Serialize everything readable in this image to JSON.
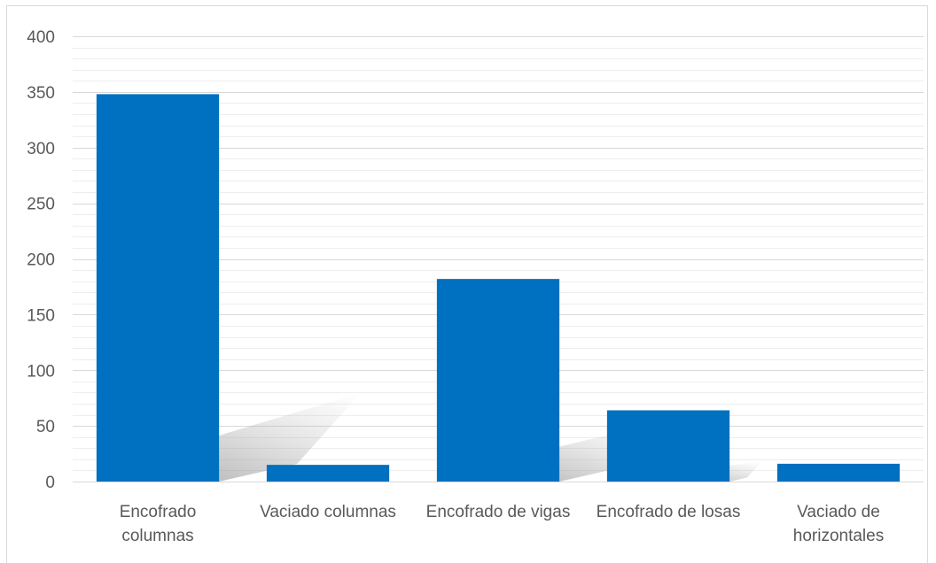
{
  "chart_data": {
    "type": "bar",
    "categories": [
      "Encofrado columnas",
      "Vaciado columnas",
      "Encofrado de vigas",
      "Encofrado de losas",
      "Vaciado de horizontales"
    ],
    "category_lines": [
      [
        "Encofrado",
        "columnas"
      ],
      [
        "Vaciado columnas"
      ],
      [
        "Encofrado de vigas"
      ],
      [
        "Encofrado de losas"
      ],
      [
        "Vaciado de",
        "horizontales"
      ]
    ],
    "values": [
      348,
      15,
      182,
      64,
      16
    ],
    "ylim": [
      0,
      400
    ],
    "yticks": [
      0,
      50,
      100,
      150,
      200,
      250,
      300,
      350,
      400
    ],
    "minor_step": 10,
    "grid": true,
    "bar_color": "#0070c0",
    "grid_color": "#d9d9d9",
    "title": "",
    "xlabel": "",
    "ylabel": ""
  }
}
